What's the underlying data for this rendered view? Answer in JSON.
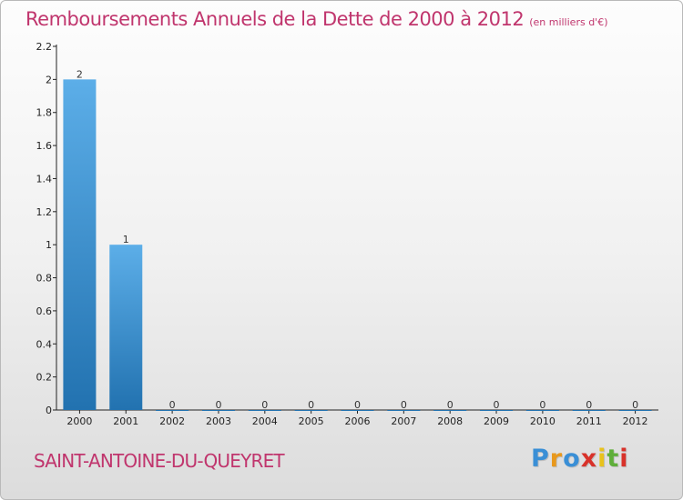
{
  "chart_data": {
    "type": "bar",
    "title": "Remboursements Annuels de la Dette de 2000 à 2012",
    "subtitle": "(en milliers d'€)",
    "categories": [
      "2000",
      "2001",
      "2002",
      "2003",
      "2004",
      "2005",
      "2006",
      "2007",
      "2008",
      "2009",
      "2010",
      "2011",
      "2012"
    ],
    "values": [
      2,
      1,
      0,
      0,
      0,
      0,
      0,
      0,
      0,
      0,
      0,
      0,
      0
    ],
    "data_labels": [
      "2",
      "1",
      "0",
      "0",
      "0",
      "0",
      "0",
      "0",
      "0",
      "0",
      "0",
      "0",
      "0"
    ],
    "y_ticks": [
      "0",
      "0.2",
      "0.4",
      "0.6",
      "0.8",
      "1",
      "1.2",
      "1.4",
      "1.6",
      "1.8",
      "2",
      "2.2"
    ],
    "ylim": [
      0,
      2.2
    ],
    "xlabel": "",
    "ylabel": "",
    "grid": false,
    "colors": {
      "bar_light": "#5caee8",
      "bar_dark": "#2272b0",
      "axis": "#222222"
    }
  },
  "commune": "SAINT-ANTOINE-DU-QUEYRET",
  "logo": {
    "letters": [
      "P",
      "r",
      "o",
      "x",
      "i",
      "t",
      "i"
    ],
    "colors": [
      "#3a8fd6",
      "#e8981c",
      "#3a8fd6",
      "#d8322a",
      "#e8c21c",
      "#5fae3a",
      "#d8322a"
    ]
  },
  "accent_color": "#c0356d"
}
